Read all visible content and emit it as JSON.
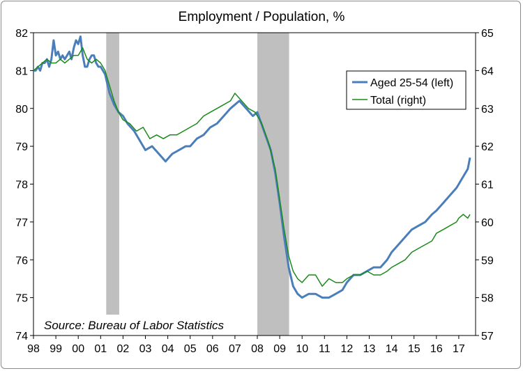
{
  "chart_data": {
    "type": "line",
    "title": "Employment / Population, %",
    "source": "Source: Bureau of Labor Statistics",
    "xlabel": "",
    "ylabel_left": "",
    "ylabel_right": "",
    "x_range": [
      1998.0,
      2017.75
    ],
    "x_tick_labels": [
      "98",
      "99",
      "00",
      "01",
      "02",
      "03",
      "04",
      "05",
      "06",
      "07",
      "08",
      "09",
      "10",
      "11",
      "12",
      "13",
      "14",
      "15",
      "16",
      "17"
    ],
    "x_tick_values": [
      1998,
      1999,
      2000,
      2001,
      2002,
      2003,
      2004,
      2005,
      2006,
      2007,
      2008,
      2009,
      2010,
      2011,
      2012,
      2013,
      2014,
      2015,
      2016,
      2017
    ],
    "y_left": {
      "range": [
        74,
        82
      ],
      "ticks": [
        74,
        75,
        76,
        77,
        78,
        79,
        80,
        81,
        82
      ]
    },
    "y_right": {
      "range": [
        57,
        65
      ],
      "ticks": [
        57,
        58,
        59,
        60,
        61,
        62,
        63,
        64,
        65
      ]
    },
    "grid": false,
    "legend_position": "top-right",
    "recessions": [
      {
        "start": 2001.25,
        "end": 2001.83
      },
      {
        "start": 2008.0,
        "end": 2009.42
      }
    ],
    "series": [
      {
        "name": "Aged 25-54 (left)",
        "axis": "left",
        "color": "#4a7ebb",
        "x": [
          1998.0,
          1998.1,
          1998.2,
          1998.3,
          1998.4,
          1998.5,
          1998.6,
          1998.7,
          1998.8,
          1998.9,
          1999.0,
          1999.1,
          1999.2,
          1999.3,
          1999.4,
          1999.5,
          1999.6,
          1999.7,
          1999.8,
          1999.9,
          2000.0,
          2000.1,
          2000.2,
          2000.3,
          2000.4,
          2000.5,
          2000.6,
          2000.7,
          2000.8,
          2000.9,
          2001.0,
          2001.2,
          2001.4,
          2001.6,
          2001.8,
          2002.0,
          2002.2,
          2002.5,
          2002.8,
          2003.0,
          2003.3,
          2003.6,
          2003.9,
          2004.2,
          2004.5,
          2004.8,
          2005.0,
          2005.3,
          2005.6,
          2005.9,
          2006.2,
          2006.5,
          2006.8,
          2007.0,
          2007.2,
          2007.5,
          2007.8,
          2008.0,
          2008.3,
          2008.6,
          2008.8,
          2009.0,
          2009.2,
          2009.4,
          2009.6,
          2009.8,
          2010.0,
          2010.3,
          2010.6,
          2010.9,
          2011.2,
          2011.5,
          2011.8,
          2012.0,
          2012.3,
          2012.6,
          2012.9,
          2013.2,
          2013.5,
          2013.8,
          2014.0,
          2014.3,
          2014.6,
          2014.9,
          2015.2,
          2015.5,
          2015.8,
          2016.0,
          2016.3,
          2016.6,
          2016.9,
          2017.0,
          2017.2,
          2017.4,
          2017.5
        ],
        "y": [
          81.0,
          81.0,
          81.1,
          81.0,
          81.2,
          81.2,
          81.3,
          81.1,
          81.3,
          81.8,
          81.4,
          81.5,
          81.3,
          81.4,
          81.3,
          81.4,
          81.5,
          81.3,
          81.6,
          81.8,
          81.7,
          81.9,
          81.4,
          81.1,
          81.1,
          81.3,
          81.4,
          81.4,
          81.2,
          81.1,
          81.1,
          80.9,
          80.4,
          80.1,
          79.9,
          79.8,
          79.6,
          79.4,
          79.1,
          78.9,
          79.0,
          78.8,
          78.6,
          78.8,
          78.9,
          79.0,
          79.0,
          79.2,
          79.3,
          79.5,
          79.6,
          79.8,
          80.0,
          80.1,
          80.2,
          80.0,
          79.8,
          79.9,
          79.4,
          78.9,
          78.3,
          77.5,
          76.6,
          75.8,
          75.3,
          75.1,
          75.0,
          75.1,
          75.1,
          75.0,
          75.0,
          75.1,
          75.2,
          75.4,
          75.6,
          75.6,
          75.7,
          75.8,
          75.8,
          76.0,
          76.2,
          76.4,
          76.6,
          76.8,
          76.9,
          77.0,
          77.2,
          77.3,
          77.5,
          77.7,
          77.9,
          78.0,
          78.2,
          78.4,
          78.7
        ]
      },
      {
        "name": "Total (right)",
        "axis": "right",
        "color": "#1a8a1a",
        "x": [
          1998.0,
          1998.2,
          1998.4,
          1998.6,
          1998.8,
          1999.0,
          1999.2,
          1999.4,
          1999.6,
          1999.8,
          2000.0,
          2000.2,
          2000.4,
          2000.6,
          2000.8,
          2001.0,
          2001.2,
          2001.4,
          2001.6,
          2001.8,
          2002.0,
          2002.3,
          2002.6,
          2002.9,
          2003.2,
          2003.5,
          2003.8,
          2004.1,
          2004.4,
          2004.7,
          2005.0,
          2005.3,
          2005.6,
          2005.9,
          2006.2,
          2006.5,
          2006.8,
          2007.0,
          2007.3,
          2007.6,
          2007.9,
          2008.2,
          2008.5,
          2008.8,
          2009.0,
          2009.2,
          2009.4,
          2009.6,
          2009.8,
          2010.0,
          2010.3,
          2010.6,
          2010.9,
          2011.2,
          2011.5,
          2011.8,
          2012.0,
          2012.3,
          2012.6,
          2012.9,
          2013.2,
          2013.5,
          2013.8,
          2014.0,
          2014.3,
          2014.6,
          2014.9,
          2015.2,
          2015.5,
          2015.8,
          2016.0,
          2016.3,
          2016.6,
          2016.9,
          2017.0,
          2017.2,
          2017.4,
          2017.5
        ],
        "y": [
          64.0,
          64.1,
          64.2,
          64.3,
          64.2,
          64.2,
          64.3,
          64.2,
          64.3,
          64.4,
          64.4,
          64.6,
          64.3,
          64.2,
          64.3,
          64.2,
          64.0,
          63.6,
          63.2,
          62.9,
          62.7,
          62.6,
          62.4,
          62.5,
          62.2,
          62.3,
          62.2,
          62.3,
          62.3,
          62.4,
          62.5,
          62.6,
          62.8,
          62.9,
          63.0,
          63.1,
          63.2,
          63.4,
          63.2,
          63.0,
          62.9,
          62.6,
          62.1,
          61.4,
          60.6,
          59.8,
          59.1,
          58.7,
          58.5,
          58.4,
          58.6,
          58.6,
          58.3,
          58.5,
          58.4,
          58.4,
          58.5,
          58.6,
          58.6,
          58.7,
          58.6,
          58.6,
          58.7,
          58.8,
          58.9,
          59.0,
          59.2,
          59.3,
          59.4,
          59.5,
          59.7,
          59.8,
          59.9,
          60.0,
          60.1,
          60.2,
          60.1,
          60.2
        ]
      }
    ]
  }
}
